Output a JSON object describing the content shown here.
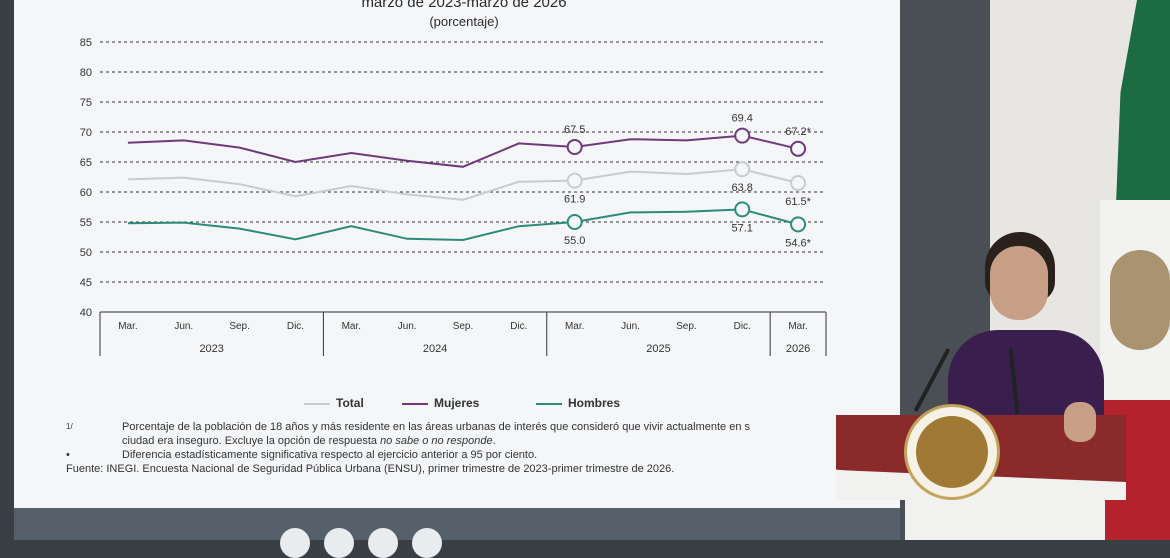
{
  "chart": {
    "title_line1": "marzo de 2023-marzo de 2026",
    "title_line2": "(porcentaje)"
  },
  "chart_data": {
    "type": "line",
    "ylim": [
      40,
      85
    ],
    "yticks": [
      40,
      45,
      50,
      55,
      60,
      65,
      70,
      75,
      80,
      85
    ],
    "categories": [
      "Mar.",
      "Jun.",
      "Sep.",
      "Dic.",
      "Mar.",
      "Jun.",
      "Sep.",
      "Dic.",
      "Mar.",
      "Jun.",
      "Sep.",
      "Dic.",
      "Mar."
    ],
    "years": [
      {
        "label": "2023",
        "span": 4
      },
      {
        "label": "2024",
        "span": 4
      },
      {
        "label": "2025",
        "span": 4
      },
      {
        "label": "2026",
        "span": 1
      }
    ],
    "series": [
      {
        "name": "Mujeres",
        "color": "#6e3a7a",
        "values": [
          68.2,
          68.6,
          67.4,
          65.0,
          66.5,
          65.2,
          64.2,
          68.1,
          67.5,
          68.8,
          68.6,
          69.4,
          67.2
        ],
        "labels": {
          "8": "67.5",
          "11": "69.4",
          "12": "67.2*"
        },
        "label_pos": "above"
      },
      {
        "name": "Total",
        "color": "#c8ccd0",
        "values": [
          62.1,
          62.4,
          61.3,
          59.3,
          61.0,
          59.6,
          58.7,
          61.7,
          61.9,
          63.4,
          63.0,
          63.8,
          61.5
        ],
        "labels": {
          "8": "61.9",
          "11": "63.8",
          "12": "61.5*"
        },
        "label_pos": "below"
      },
      {
        "name": "Hombres",
        "color": "#2e8b7a",
        "values": [
          54.8,
          54.9,
          53.9,
          52.1,
          54.3,
          52.2,
          52.0,
          54.3,
          55.0,
          56.6,
          56.7,
          57.1,
          54.6
        ],
        "labels": {
          "8": "55.0",
          "11": "57.1",
          "12": "54.6*"
        },
        "label_pos": "below"
      }
    ],
    "markers_at": [
      8,
      11,
      12
    ],
    "legend_order": [
      "Total",
      "Mujeres",
      "Hombres"
    ],
    "legend_placement": "bottom"
  },
  "legend": {
    "total": "Total",
    "mujeres": "Mujeres",
    "hombres": "Hombres"
  },
  "notes": {
    "mark1": "1/",
    "note1_line1": "Porcentaje de la población de 18 años y más residente en las áreas urbanas de interés que consideró que vivir actualmente en s",
    "note1_line2_a": "ciudad era inseguro. Excluye la opción de respuesta ",
    "note1_line2_em": "no sabe o no responde",
    "note1_line2_b": ".",
    "mark2": "•",
    "note2": "Diferencia estadísticamente significativa respecto al ejercicio anterior a 95 por ciento.",
    "fuente": "Fuente: INEGI. Encuesta Nacional de Seguridad Pública Urbana (ENSU), primer trimestre de 2023-primer trimestre de 2026."
  }
}
